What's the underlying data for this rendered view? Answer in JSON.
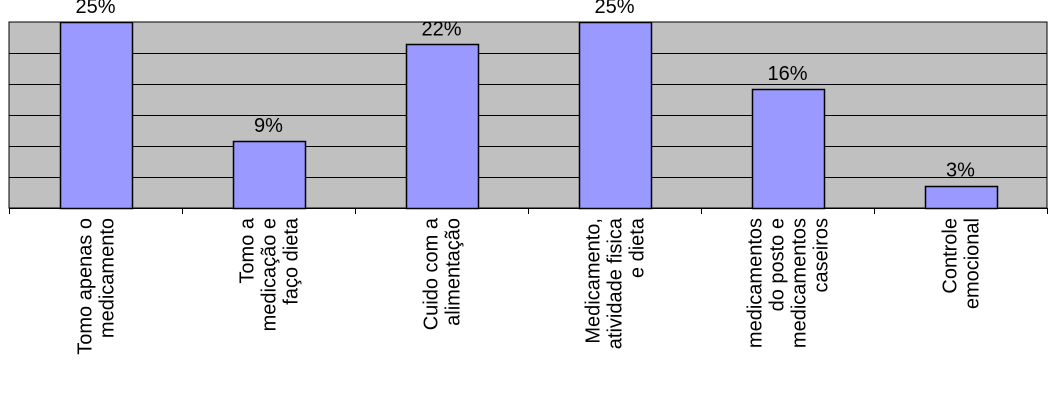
{
  "chart_data": {
    "type": "bar",
    "categories": [
      [
        "Tomo apenas o",
        "medicamento"
      ],
      [
        "Tomo a",
        "medicação e",
        "faço dieta"
      ],
      [
        "Cuido com a",
        "alimentação"
      ],
      [
        "Medicamento,",
        "atividade fisica",
        "e dieta"
      ],
      [
        "medicamentos",
        "do posto e",
        "medicamentos",
        "caseiros"
      ],
      [
        "Controle",
        "emocional"
      ]
    ],
    "values": [
      25,
      9,
      22,
      25,
      16,
      3
    ],
    "data_labels": [
      "25%",
      "9%",
      "22%",
      "25%",
      "16%",
      "3%"
    ],
    "ylim": [
      0,
      25
    ],
    "grid": true,
    "title": "",
    "xlabel": "",
    "ylabel": "",
    "colors": {
      "plot_bg": "#c0c0c0",
      "bar_fill": "#9999ff",
      "bar_stroke": "#000000",
      "grid": "#000000"
    }
  }
}
